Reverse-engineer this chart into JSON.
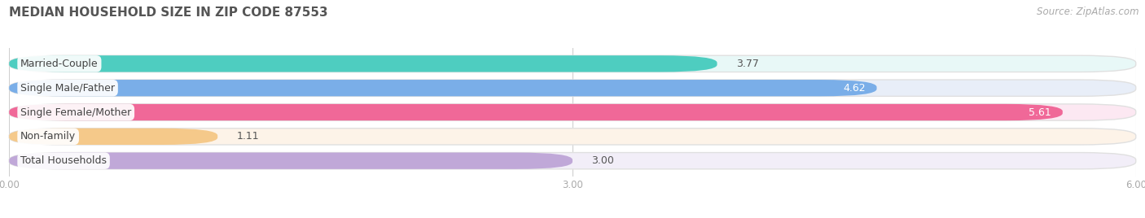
{
  "title": "MEDIAN HOUSEHOLD SIZE IN ZIP CODE 87553",
  "source": "Source: ZipAtlas.com",
  "categories": [
    "Married-Couple",
    "Single Male/Father",
    "Single Female/Mother",
    "Non-family",
    "Total Households"
  ],
  "values": [
    3.77,
    4.62,
    5.61,
    1.11,
    3.0
  ],
  "bar_colors": [
    "#4ecdc0",
    "#7aaee8",
    "#f06898",
    "#f5c98a",
    "#c0a8d8"
  ],
  "bar_bg_colors": [
    "#e8f8f7",
    "#e8eef8",
    "#fce8f2",
    "#fdf3e8",
    "#f2eef8"
  ],
  "label_bg_colors": [
    "#e8f8f7",
    "#e8eef8",
    "#fce8f2",
    "#fdf3e8",
    "#f2eef8"
  ],
  "xlim": [
    0,
    6.0
  ],
  "xticks": [
    0.0,
    3.0,
    6.0
  ],
  "xtick_labels": [
    "0.00",
    "3.00",
    "6.00"
  ],
  "value_labels": [
    "3.77",
    "4.62",
    "5.61",
    "1.11",
    "3.00"
  ],
  "bg_color": "#ffffff",
  "title_fontsize": 11,
  "label_fontsize": 9,
  "value_fontsize": 9,
  "source_fontsize": 8.5
}
